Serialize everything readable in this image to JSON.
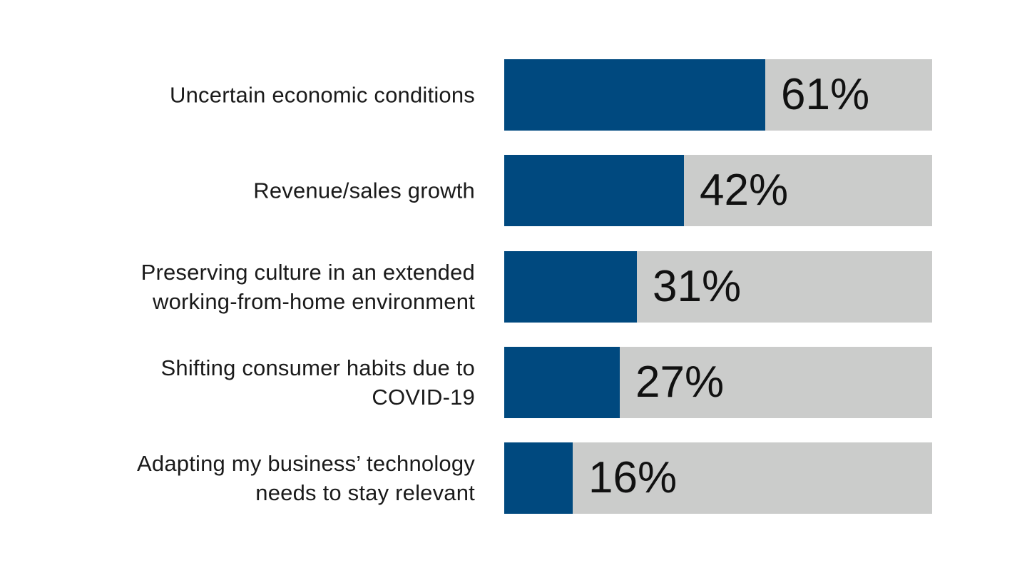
{
  "chart_data": {
    "type": "bar",
    "orientation": "horizontal",
    "categories": [
      "Uncertain economic conditions",
      "Revenue/sales growth",
      "Preserving culture in an extended working-from-home environment",
      "Shifting consumer habits due to COVID-19",
      "Adapting my business’ technology needs to stay relevant"
    ],
    "values": [
      61,
      42,
      31,
      27,
      16
    ],
    "value_labels": [
      "61%",
      "42%",
      "31%",
      "27%",
      "16%"
    ],
    "xlim": [
      0,
      100
    ],
    "unit": "%",
    "grid": false,
    "legend": "none",
    "colors": {
      "fill": "#00497f",
      "track": "#cbcccb",
      "text": "#1a1a1a"
    }
  }
}
